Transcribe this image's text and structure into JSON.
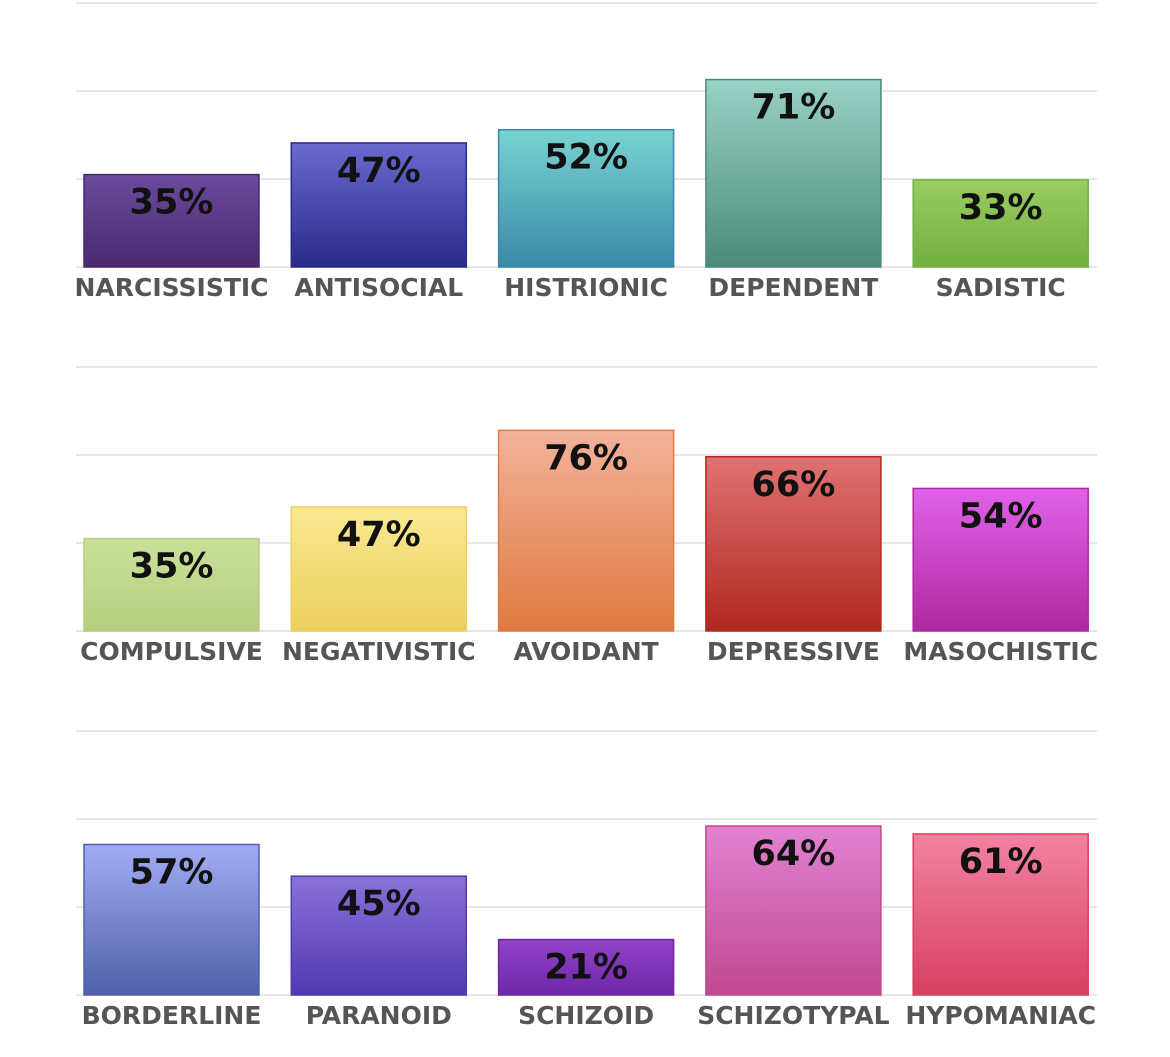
{
  "chart_data": [
    {
      "type": "bar",
      "categories": [
        "NARCISSISTIC",
        "ANTISOCIAL",
        "HISTRIONIC",
        "DEPENDENT",
        "SADISTIC"
      ],
      "values": [
        35,
        47,
        52,
        71,
        33
      ],
      "value_labels": [
        "35%",
        "47%",
        "52%",
        "71%",
        "33%"
      ],
      "colors": [
        [
          "#6b4b9c",
          "#4a2870"
        ],
        [
          "#6a6ad0",
          "#2a2a8a"
        ],
        [
          "#78d4d2",
          "#3a88a8"
        ],
        [
          "#9ad2c6",
          "#4a8a78"
        ],
        [
          "#9acc62",
          "#72b040"
        ]
      ],
      "ylim": [
        0,
        100
      ],
      "yticks": [
        0,
        33.33,
        66.67,
        100
      ],
      "grid": true
    },
    {
      "type": "bar",
      "categories": [
        "COMPULSIVE",
        "NEGATIVISTIC",
        "AVOIDANT",
        "DEPRESSIVE",
        "MASOCHISTIC"
      ],
      "values": [
        35,
        47,
        76,
        66,
        54
      ],
      "value_labels": [
        "35%",
        "47%",
        "76%",
        "66%",
        "54%"
      ],
      "colors": [
        [
          "#cae09a",
          "#b6ce7e"
        ],
        [
          "#fae892",
          "#ecd05e"
        ],
        [
          "#f2b29a",
          "#e07a40"
        ],
        [
          "#e07272",
          "#b02820"
        ],
        [
          "#e062ea",
          "#b028a0"
        ]
      ],
      "ylim": [
        0,
        100
      ],
      "yticks": [
        0,
        33.33,
        66.67,
        100
      ],
      "grid": true
    },
    {
      "type": "bar",
      "categories": [
        "BORDERLINE",
        "PARANOID",
        "SCHIZOID",
        "SCHIZOTYPAL",
        "HYPOMANIAC"
      ],
      "values": [
        57,
        45,
        21,
        64,
        61
      ],
      "value_labels": [
        "57%",
        "45%",
        "21%",
        "64%",
        "61%"
      ],
      "colors": [
        [
          "#a2acf4",
          "#5060a8"
        ],
        [
          "#8a72da",
          "#5038b0"
        ],
        [
          "#9244ca",
          "#6e26a6"
        ],
        [
          "#e282d2",
          "#c04890"
        ],
        [
          "#f282a2",
          "#d84060"
        ]
      ],
      "ylim": [
        0,
        100
      ],
      "yticks": [
        0,
        33.33,
        66.67,
        100
      ],
      "grid": true
    }
  ]
}
